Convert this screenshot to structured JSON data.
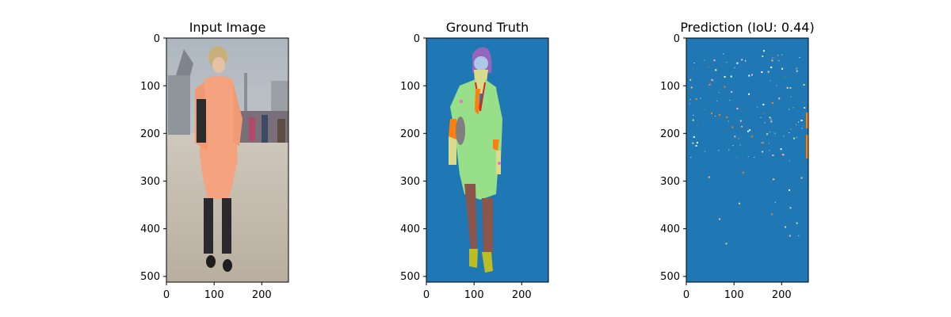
{
  "chart_data": [
    {
      "type": "image",
      "title": "Input Image",
      "xlim": [
        0,
        256
      ],
      "ylim": [
        512,
        0
      ],
      "x_ticks": [
        "0",
        "100",
        "200"
      ],
      "y_ticks": [
        "0",
        "100",
        "200",
        "300",
        "400",
        "500"
      ],
      "content": "photo"
    },
    {
      "type": "image",
      "title": "Ground Truth",
      "xlim": [
        0,
        256
      ],
      "ylim": [
        512,
        0
      ],
      "x_ticks": [
        "0",
        "100",
        "200"
      ],
      "y_ticks": [
        "0",
        "100",
        "200",
        "300",
        "400",
        "500"
      ],
      "content": "segmentation"
    },
    {
      "type": "image",
      "title": "Prediction (IoU: 0.44)",
      "iou": 0.44,
      "xlim": [
        0,
        256
      ],
      "ylim": [
        512,
        0
      ],
      "x_ticks": [
        "0",
        "100",
        "200"
      ],
      "y_ticks": [
        "0",
        "100",
        "200",
        "300",
        "400",
        "500"
      ],
      "content": "prediction"
    }
  ],
  "colors": {
    "background_class": "#1f77b4",
    "hair": "#9467bd",
    "face": "#aec7e8",
    "coat": "#98df8a",
    "skin": "#dbdb8d",
    "orange": "#ff7f0e",
    "pants": "#8c564b",
    "shoes": "#bcbd22",
    "bag": "#7f7f7f",
    "red": "#d62728",
    "pink": "#e377c2"
  }
}
